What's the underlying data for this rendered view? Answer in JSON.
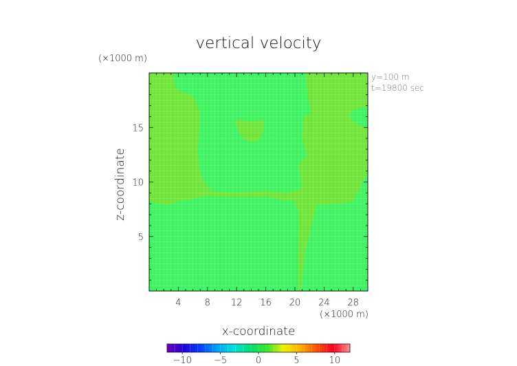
{
  "chart_data": {
    "type": "heatmap",
    "title": "vertical velocity",
    "xlabel": "x-coordinate",
    "ylabel": "z-coordinate",
    "x_unit": "(×1000 m)",
    "y_unit": "(×1000 m)",
    "xlim": [
      0,
      30
    ],
    "ylim": [
      0,
      20
    ],
    "x_ticks": [
      4,
      8,
      12,
      16,
      20,
      24,
      28
    ],
    "y_ticks": [
      5,
      10,
      15
    ],
    "annotations": [
      "y=100 m",
      "t=19800 sec"
    ],
    "grid": true,
    "field": {
      "background_level": 0.5,
      "updraft_level": 1.5,
      "description_levels": "light green ≈ 0 to +1, green ≈ +1 to +2"
    },
    "updraft_regions": [
      {
        "x": [
          0,
          0,
          1.5,
          3.0,
          3.8,
          5.8,
          7.0,
          8.5,
          12.0,
          16.0,
          20.0,
          20.6,
          20.5,
          20.5,
          20.8,
          21.5,
          23.0,
          26.0,
          28.0,
          29.0,
          30.0,
          30.0,
          29.0,
          28.0,
          27.5,
          28.0,
          30.0,
          30.0,
          21.5,
          21.8,
          22.2,
          21.2,
          21.0,
          21.6,
          20.5,
          20.8,
          21.0,
          20.2,
          19.0,
          16.0,
          12.0,
          8.5,
          7.5,
          6.9,
          6.7,
          6.8,
          7.0,
          7.0,
          6.4,
          5.8,
          4.8,
          3.9,
          3.5,
          3.5,
          3.4,
          3.4,
          0
        ],
        "y": [
          20,
          8.2,
          8.0,
          7.9,
          8.2,
          8.4,
          8.6,
          8.7,
          8.6,
          8.6,
          8.2,
          7.2,
          5.0,
          0,
          0,
          3.8,
          7.9,
          8.0,
          8.2,
          9.5,
          11.0,
          15.0,
          15.2,
          15.6,
          16.0,
          16.6,
          16.9,
          20,
          20,
          17.8,
          16.3,
          16.0,
          14.0,
          12.4,
          11.5,
          10.5,
          9.5,
          9.2,
          9.0,
          9.2,
          9.0,
          9.2,
          10.0,
          11.3,
          12.7,
          14.0,
          15.2,
          16.4,
          17.5,
          18.0,
          18.2,
          18.5,
          19.0,
          19.5,
          19.8,
          20,
          20
        ]
      },
      {
        "x": [
          11.8,
          12.4,
          13.6,
          14.0,
          14.8,
          15.7,
          15.8,
          15.3,
          14.4,
          13.2,
          12.3,
          11.8
        ],
        "y": [
          15.6,
          15.7,
          15.6,
          15.5,
          15.6,
          15.7,
          15.0,
          14.0,
          13.6,
          13.8,
          14.6,
          15.6
        ]
      }
    ],
    "colorbar": {
      "ticks": [
        -10,
        -5,
        0,
        5,
        10
      ],
      "range": [
        -12,
        12
      ],
      "stops": [
        "#6a00b8",
        "#2200dd",
        "#0040ff",
        "#00a0ff",
        "#00e0e0",
        "#00e070",
        "#30e830",
        "#f0f000",
        "#ffb000",
        "#ff5000",
        "#ff0020",
        "#ff9090"
      ]
    },
    "colors": {
      "background_fill": "#3ef261",
      "updraft_fill": "#6fe539"
    }
  }
}
